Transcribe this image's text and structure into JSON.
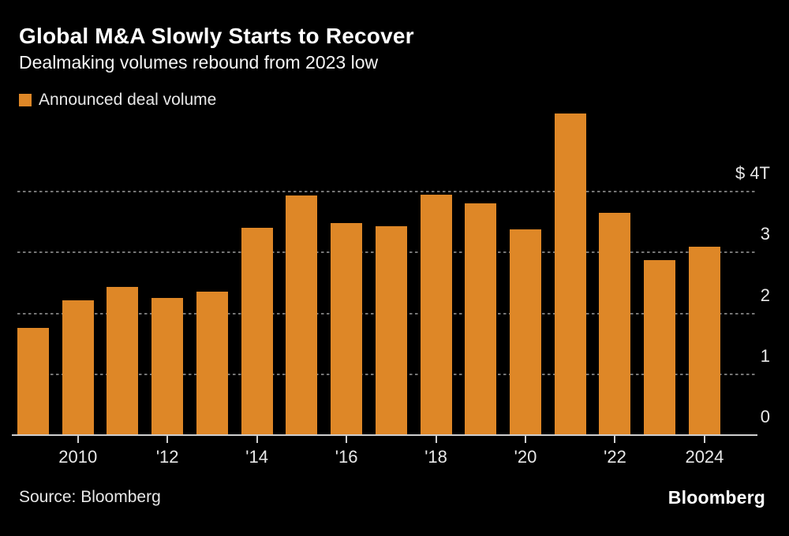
{
  "header": {
    "title": "Global M&A Slowly Starts to Recover",
    "subtitle": "Dealmaking volumes rebound from 2023 low"
  },
  "legend": {
    "label": "Announced deal volume",
    "swatch_color": "#DE8727"
  },
  "footer": {
    "source": "Source: Bloomberg",
    "brand": "Bloomberg"
  },
  "chart_data": {
    "type": "bar",
    "title": "Global M&A Slowly Starts to Recover",
    "subtitle": "Dealmaking volumes rebound from 2023 low",
    "series_name": "Announced deal volume",
    "unit": "USD trillions",
    "x": [
      2009,
      2010,
      2011,
      2012,
      2013,
      2014,
      2015,
      2016,
      2017,
      2018,
      2019,
      2020,
      2021,
      2022,
      2023,
      2024
    ],
    "values": [
      1.76,
      2.21,
      2.44,
      2.25,
      2.36,
      3.41,
      3.94,
      3.49,
      3.43,
      3.95,
      3.81,
      3.38,
      5.28,
      3.65,
      2.87,
      3.09
    ],
    "bar_color": "#DE8727",
    "background_color": "#000000",
    "ylim": [
      0,
      5.3
    ],
    "y_axis_side": "right",
    "yticks": [
      {
        "value": 0,
        "label": "0"
      },
      {
        "value": 1,
        "label": "1"
      },
      {
        "value": 2,
        "label": "2"
      },
      {
        "value": 3,
        "label": "3"
      },
      {
        "value": 4,
        "label": "$ 4T"
      }
    ],
    "gridline_values": [
      1,
      2,
      3,
      4
    ],
    "grid_style": "dashed-horizontal",
    "xticks": [
      {
        "year": 2010,
        "label": "2010"
      },
      {
        "year": 2012,
        "label": "'12"
      },
      {
        "year": 2014,
        "label": "'14"
      },
      {
        "year": 2016,
        "label": "'16"
      },
      {
        "year": 2018,
        "label": "'18"
      },
      {
        "year": 2020,
        "label": "'20"
      },
      {
        "year": 2022,
        "label": "'22"
      },
      {
        "year": 2024,
        "label": "2024"
      }
    ],
    "legend_position": "top-left"
  }
}
